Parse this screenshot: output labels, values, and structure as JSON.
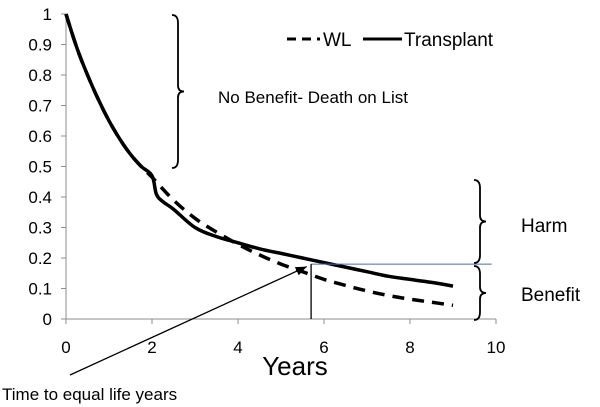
{
  "chart_data": {
    "type": "line",
    "title": "",
    "xlabel": "Years",
    "ylabel": "",
    "xlim": [
      0,
      10
    ],
    "ylim": [
      0,
      1
    ],
    "x_ticks": [
      0,
      2,
      4,
      6,
      8,
      10
    ],
    "y_ticks": [
      0,
      0.1,
      0.2,
      0.3,
      0.4,
      0.5,
      0.6,
      0.7,
      0.8,
      0.9,
      1
    ],
    "x_tick_labels": [
      "0",
      "2",
      "4",
      "6",
      "8",
      "10"
    ],
    "y_tick_labels": [
      "0",
      "0.1",
      "0.2",
      "0.3",
      "0.4",
      "0.5",
      "0.6",
      "0.7",
      "0.8",
      "0.9",
      "1"
    ],
    "legend": {
      "placement": "top-right",
      "entries": [
        "WL",
        "Transplant"
      ]
    },
    "series": [
      {
        "name": "WL",
        "style": "dashed",
        "x": [
          0,
          0.25,
          0.5,
          0.75,
          1,
          1.25,
          1.5,
          1.75,
          2,
          2.5,
          3,
          3.5,
          4,
          4.5,
          5,
          5.5,
          6,
          6.5,
          7,
          7.5,
          8,
          8.5,
          9
        ],
        "values": [
          1,
          0.89,
          0.8,
          0.72,
          0.65,
          0.59,
          0.54,
          0.5,
          0.465,
          0.39,
          0.33,
          0.285,
          0.245,
          0.21,
          0.18,
          0.155,
          0.13,
          0.11,
          0.092,
          0.077,
          0.065,
          0.055,
          0.045
        ]
      },
      {
        "name": "Transplant",
        "style": "solid",
        "x": [
          0,
          0.25,
          0.5,
          0.75,
          1,
          1.25,
          1.5,
          1.75,
          2,
          2.1,
          2.25,
          2.5,
          3,
          3.5,
          4,
          4.5,
          5,
          5.5,
          6,
          6.5,
          7,
          7.5,
          8,
          8.5,
          9
        ],
        "values": [
          1,
          0.89,
          0.8,
          0.72,
          0.65,
          0.59,
          0.54,
          0.5,
          0.47,
          0.41,
          0.385,
          0.36,
          0.3,
          0.27,
          0.25,
          0.23,
          0.215,
          0.2,
          0.185,
          0.17,
          0.155,
          0.14,
          0.13,
          0.12,
          0.108
        ]
      }
    ],
    "reference_line": {
      "y": 0.18,
      "x_from": 5.7,
      "x_to": 9.9
    },
    "crossover_marker": {
      "x": 5.7,
      "y_from": 0.18,
      "y_to": 0.0
    },
    "annotations": {
      "no_benefit": {
        "text": "No Benefit- Death on List",
        "y_range": [
          0.48,
          1.0
        ]
      },
      "harm": {
        "text": "Harm",
        "y_range": [
          0.18,
          0.46
        ]
      },
      "benefit": {
        "text": "Benefit",
        "y_range": [
          0.0,
          0.18
        ]
      },
      "equal_life_years": {
        "text": "Time to equal life years",
        "points_to": {
          "x": 5.6,
          "y": 0.185
        }
      }
    }
  }
}
